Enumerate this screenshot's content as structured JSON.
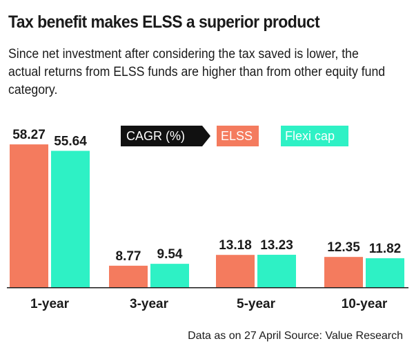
{
  "title": "Tax benefit makes ELSS a superior product",
  "subtitle": "Since net investment after considering the tax saved is lower, the actual returns from ELSS funds are higher than from other equity fund category.",
  "legend": {
    "metric": "CAGR (%)",
    "series1": "ELSS",
    "series2": "Flexi cap"
  },
  "source": "Data as on 27 April Source: Value Research",
  "colors": {
    "elss": "#f47b5e",
    "flexi": "#2ef1c5",
    "text": "#1a1a1a"
  },
  "chart_data": {
    "type": "bar",
    "title": "Tax benefit makes ELSS a superior product",
    "categories": [
      "1-year",
      "3-year",
      "5-year",
      "10-year"
    ],
    "series": [
      {
        "name": "ELSS",
        "values": [
          58.27,
          8.77,
          13.18,
          12.35
        ]
      },
      {
        "name": "Flexi cap",
        "values": [
          55.64,
          9.54,
          13.23,
          11.82
        ]
      }
    ],
    "ylabel": "CAGR (%)",
    "ylim": [
      0,
      60
    ],
    "grid": false,
    "legend_position": "top-right"
  }
}
